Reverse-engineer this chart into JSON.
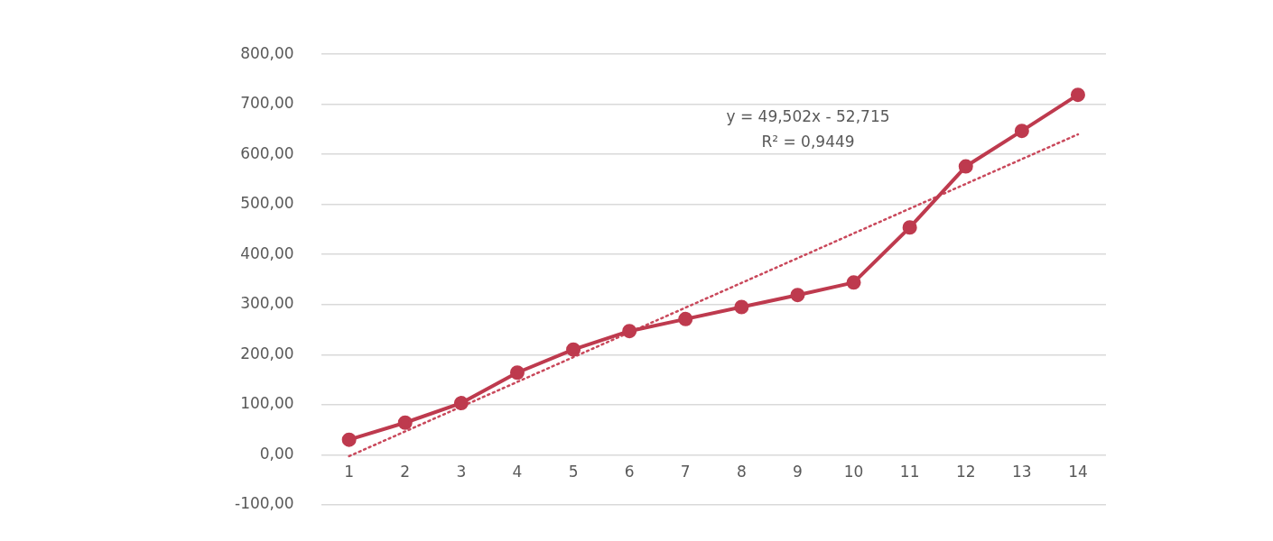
{
  "chart_data": {
    "type": "line",
    "x": [
      1,
      2,
      3,
      4,
      5,
      6,
      7,
      8,
      9,
      10,
      11,
      12,
      13,
      14
    ],
    "series": [
      {
        "color": "#be3a4e",
        "marker": "circle",
        "line_style": "solid",
        "values": [
          30,
          64,
          103,
          164,
          210,
          247,
          271,
          295,
          319,
          344,
          454,
          576,
          647,
          719
        ]
      },
      {
        "color": "#c9485b",
        "marker": "none",
        "line_style": "dotted",
        "x": [
          1,
          14
        ],
        "values": [
          -3,
          640
        ]
      }
    ],
    "xlim": [
      0.5,
      14.5
    ],
    "xticks": [
      1,
      2,
      3,
      4,
      5,
      6,
      7,
      8,
      9,
      10,
      11,
      12,
      13,
      14
    ],
    "ylim": [
      -100,
      800
    ],
    "yticks": [
      {
        "value": -100,
        "label": "-100,00"
      },
      {
        "value": 0,
        "label": "0,00"
      },
      {
        "value": 100,
        "label": "100,00"
      },
      {
        "value": 200,
        "label": "200,00"
      },
      {
        "value": 300,
        "label": "300,00"
      },
      {
        "value": 400,
        "label": "400,00"
      },
      {
        "value": 500,
        "label": "500,00"
      },
      {
        "value": 600,
        "label": "600,00"
      },
      {
        "value": 700,
        "label": "700,00"
      },
      {
        "value": 800,
        "label": "800,00"
      }
    ],
    "grid": "y",
    "legend": false,
    "annotations": [
      "y = 49,502x - 52,715",
      "R² = 0,9449"
    ]
  }
}
